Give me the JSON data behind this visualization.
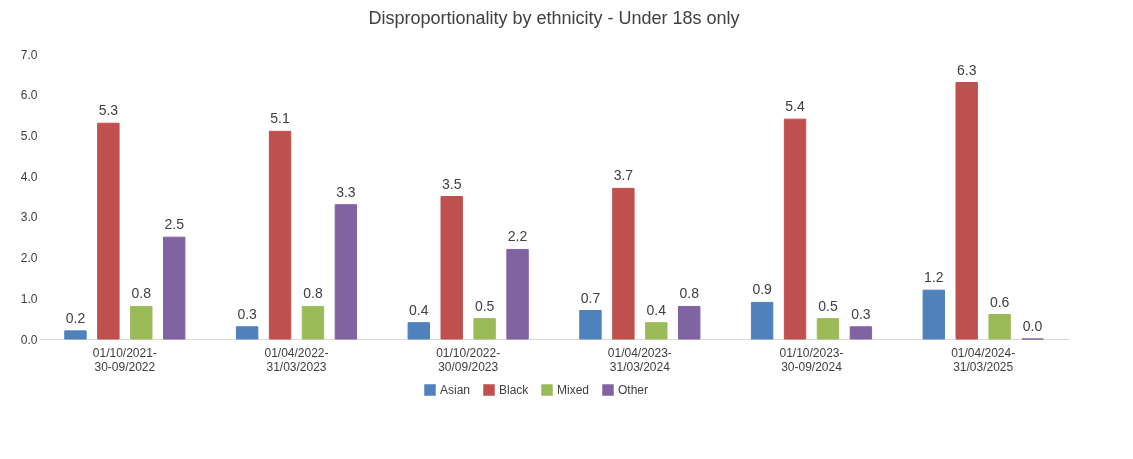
{
  "chart_data": {
    "type": "bar",
    "title": "Disproportionality by ethnicity - Under 18s only",
    "categories": [
      "01/10/2021-\n30-09/2022",
      "01/04/2022-\n31/03/2023",
      "01/10/2022-\n30/09/2023",
      "01/04/2023-\n31/03/2024",
      "01/10/2023-\n30-09/2024",
      "01/04/2024-\n31/03/2025"
    ],
    "series": [
      {
        "name": "Asian",
        "color": "#4f81bd",
        "values": [
          0.2,
          0.3,
          0.4,
          0.7,
          0.9,
          1.2
        ],
        "value_labels": [
          "0.2",
          "0.3",
          "0.4",
          "0.7",
          "0.9",
          "1.2"
        ]
      },
      {
        "name": "Black",
        "color": "#c0504d",
        "values": [
          5.3,
          5.1,
          3.5,
          3.7,
          5.4,
          6.3
        ],
        "value_labels": [
          "5.3",
          "5.1",
          "3.5",
          "3.7",
          "5.4",
          "6.3"
        ]
      },
      {
        "name": "Mixed",
        "color": "#9bbb59",
        "values": [
          0.8,
          0.8,
          0.5,
          0.4,
          0.5,
          0.6
        ],
        "value_labels": [
          "0.8",
          "0.8",
          "0.5",
          "0.4",
          "0.5",
          "0.6"
        ]
      },
      {
        "name": "Other",
        "color": "#8064a2",
        "values": [
          2.5,
          3.3,
          2.2,
          0.8,
          0.3,
          0.0
        ],
        "value_labels": [
          "2.5",
          "3.3",
          "2.2",
          "0.8",
          "0.3",
          "0.0"
        ]
      }
    ],
    "ylim": [
      0,
      7
    ],
    "yticks": [
      {
        "value": 0,
        "label": "0.0"
      },
      {
        "value": 1,
        "label": "1.0"
      },
      {
        "value": 2,
        "label": "2.0"
      },
      {
        "value": 3,
        "label": "3.0"
      },
      {
        "value": 4,
        "label": "4.0"
      },
      {
        "value": 5,
        "label": "5.0"
      },
      {
        "value": 6,
        "label": "6.0"
      },
      {
        "value": 7,
        "label": "7.0"
      }
    ],
    "grid": false,
    "legend": "bottom"
  }
}
